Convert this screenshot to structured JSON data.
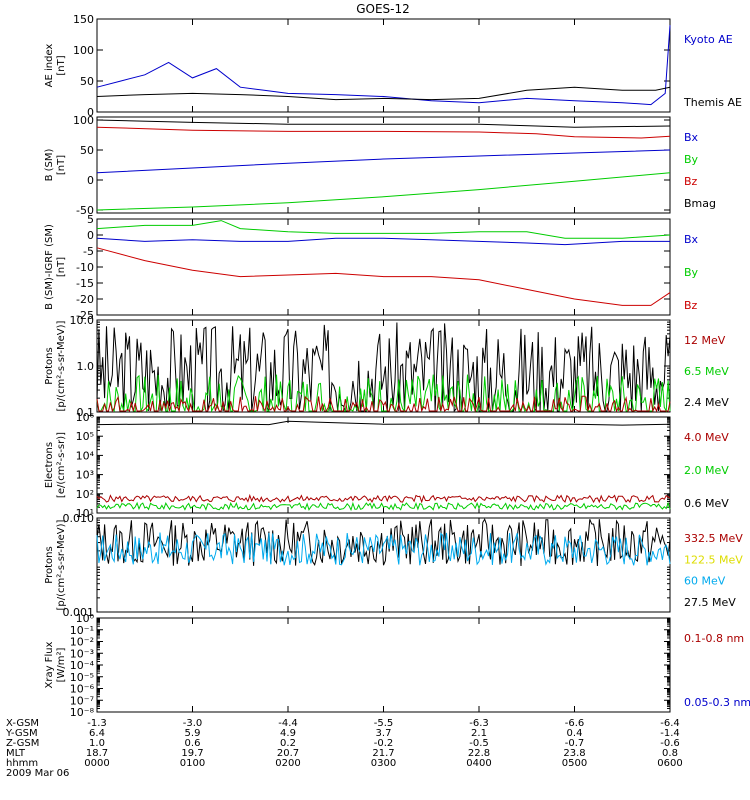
{
  "title": "GOES-12",
  "colors": {
    "black": "#000000",
    "blue": "#0000cc",
    "red": "#cc0000",
    "green": "#00cc00",
    "darkred": "#aa0000",
    "cyan": "#00aaee",
    "yellow": "#dddd00"
  },
  "x_axis": {
    "ticks": [
      "0000",
      "0100",
      "0200",
      "0300",
      "0400",
      "0500",
      "0600"
    ],
    "rows": [
      {
        "label": "X-GSM",
        "values": [
          "-1.3",
          "-3.0",
          "-4.4",
          "-5.5",
          "-6.3",
          "-6.6",
          "-6.4"
        ]
      },
      {
        "label": "Y-GSM",
        "values": [
          "6.4",
          "5.9",
          "4.9",
          "3.7",
          "2.1",
          "0.4",
          "-1.4"
        ]
      },
      {
        "label": "Z-GSM",
        "values": [
          "1.0",
          "0.6",
          "0.2",
          "-0.2",
          "-0.5",
          "-0.7",
          "-0.6"
        ]
      },
      {
        "label": "MLT",
        "values": [
          "18.7",
          "19.7",
          "20.7",
          "21.7",
          "22.8",
          "23.8",
          "0.8"
        ]
      },
      {
        "label": "hhmm",
        "values": [
          "0000",
          "0100",
          "0200",
          "0300",
          "0400",
          "0500",
          "0600"
        ]
      }
    ],
    "date": "2009 Mar 06"
  },
  "chart_data": [
    {
      "type": "line",
      "ylabel": [
        "AE index",
        "[nT]"
      ],
      "ylim": [
        0,
        150
      ],
      "yscale": "linear",
      "ticks": [
        "0",
        "50",
        "100",
        "150"
      ],
      "legend": [
        {
          "name": "Kyoto AE",
          "color": "blue"
        },
        {
          "name": "Themis AE",
          "color": "black"
        }
      ],
      "series": [
        {
          "name": "Kyoto AE",
          "color": "blue",
          "points": [
            [
              0,
              40
            ],
            [
              0.25,
              50
            ],
            [
              0.5,
              60
            ],
            [
              0.75,
              80
            ],
            [
              1,
              55
            ],
            [
              1.25,
              70
            ],
            [
              1.5,
              40
            ],
            [
              1.75,
              35
            ],
            [
              2,
              30
            ],
            [
              2.5,
              28
            ],
            [
              3,
              25
            ],
            [
              3.5,
              18
            ],
            [
              4,
              15
            ],
            [
              4.5,
              22
            ],
            [
              5,
              18
            ],
            [
              5.5,
              15
            ],
            [
              5.8,
              12
            ],
            [
              5.95,
              30
            ],
            [
              6,
              140
            ]
          ]
        },
        {
          "name": "Themis AE",
          "color": "black",
          "points": [
            [
              0,
              25
            ],
            [
              0.5,
              28
            ],
            [
              1,
              30
            ],
            [
              1.5,
              28
            ],
            [
              2,
              25
            ],
            [
              2.5,
              20
            ],
            [
              3,
              22
            ],
            [
              3.5,
              20
            ],
            [
              4,
              22
            ],
            [
              4.5,
              35
            ],
            [
              5,
              40
            ],
            [
              5.5,
              35
            ],
            [
              5.85,
              35
            ],
            [
              6,
              40
            ]
          ]
        }
      ]
    },
    {
      "type": "line",
      "ylabel": [
        "B (SM)",
        "[nT]"
      ],
      "ylim": [
        -55,
        105
      ],
      "yscale": "linear",
      "ticks": [
        "-50",
        "0",
        "50",
        "100"
      ],
      "legend": [
        {
          "name": "Bx",
          "color": "blue"
        },
        {
          "name": "By",
          "color": "green"
        },
        {
          "name": "Bz",
          "color": "red"
        },
        {
          "name": "Bmag",
          "color": "black"
        }
      ],
      "series": [
        {
          "name": "Bmag",
          "color": "black",
          "points": [
            [
              0,
              100
            ],
            [
              1,
              96
            ],
            [
              2,
              93
            ],
            [
              3,
              93
            ],
            [
              4,
              93
            ],
            [
              4.6,
              90
            ],
            [
              5,
              88
            ],
            [
              6,
              90
            ]
          ]
        },
        {
          "name": "Bz",
          "color": "red",
          "points": [
            [
              0,
              88
            ],
            [
              1,
              83
            ],
            [
              2,
              81
            ],
            [
              3,
              81
            ],
            [
              4,
              80
            ],
            [
              4.6,
              77
            ],
            [
              5,
              72
            ],
            [
              5.7,
              70
            ],
            [
              6,
              73
            ]
          ]
        },
        {
          "name": "Bx",
          "color": "blue",
          "points": [
            [
              0,
              12
            ],
            [
              1,
              20
            ],
            [
              2,
              28
            ],
            [
              3,
              35
            ],
            [
              4,
              40
            ],
            [
              5,
              45
            ],
            [
              6,
              50
            ]
          ]
        },
        {
          "name": "By",
          "color": "green",
          "points": [
            [
              0,
              -50
            ],
            [
              1,
              -45
            ],
            [
              2,
              -38
            ],
            [
              3,
              -28
            ],
            [
              4,
              -16
            ],
            [
              5,
              -2
            ],
            [
              6,
              12
            ]
          ]
        }
      ]
    },
    {
      "type": "line",
      "ylabel": [
        "B (SM)-IGRF (SM)",
        "[nT]"
      ],
      "ylim": [
        -25,
        5
      ],
      "yscale": "linear",
      "ticks": [
        "5",
        "0",
        "-5",
        "-10",
        "-15",
        "-20",
        "-25"
      ],
      "legend": [
        {
          "name": "Bx",
          "color": "blue"
        },
        {
          "name": "By",
          "color": "green"
        },
        {
          "name": "Bz",
          "color": "red"
        }
      ],
      "series": [
        {
          "name": "By",
          "color": "green",
          "points": [
            [
              0,
              2
            ],
            [
              0.5,
              3
            ],
            [
              1,
              3
            ],
            [
              1.3,
              4.5
            ],
            [
              1.5,
              2
            ],
            [
              2,
              1
            ],
            [
              2.5,
              0.5
            ],
            [
              3,
              0.5
            ],
            [
              3.5,
              0.5
            ],
            [
              4,
              1
            ],
            [
              4.5,
              1
            ],
            [
              4.9,
              -1
            ],
            [
              5.5,
              -1
            ],
            [
              6,
              0
            ]
          ]
        },
        {
          "name": "Bx",
          "color": "blue",
          "points": [
            [
              0,
              -1
            ],
            [
              0.5,
              -2
            ],
            [
              1,
              -1.5
            ],
            [
              1.5,
              -2
            ],
            [
              2,
              -2
            ],
            [
              2.5,
              -1
            ],
            [
              3,
              -1
            ],
            [
              3.5,
              -1.5
            ],
            [
              4,
              -2
            ],
            [
              4.5,
              -2.5
            ],
            [
              4.9,
              -3
            ],
            [
              5.5,
              -2
            ],
            [
              6,
              -2
            ]
          ]
        },
        {
          "name": "Bz",
          "color": "red",
          "points": [
            [
              0,
              -4
            ],
            [
              0.5,
              -8
            ],
            [
              1,
              -11
            ],
            [
              1.5,
              -13
            ],
            [
              2,
              -12.5
            ],
            [
              2.5,
              -12
            ],
            [
              3,
              -13
            ],
            [
              3.5,
              -13
            ],
            [
              4,
              -14
            ],
            [
              4.5,
              -17
            ],
            [
              5,
              -20
            ],
            [
              5.5,
              -22
            ],
            [
              5.8,
              -22
            ],
            [
              6,
              -18
            ]
          ]
        }
      ]
    },
    {
      "type": "line",
      "ylabel": [
        "Protons",
        "[p/(cm²-s-sr-MeV)]"
      ],
      "ylim": [
        0.1,
        10
      ],
      "yscale": "log",
      "ticks": [
        "10.0",
        "1.0",
        "0.1"
      ],
      "legend": [
        {
          "name": "12 MeV",
          "color": "darkred"
        },
        {
          "name": "6.5 MeV",
          "color": "green"
        },
        {
          "name": "2.4 MeV",
          "color": "black"
        }
      ],
      "series": [
        {
          "name": "2.4 MeV",
          "color": "black",
          "noisy": true,
          "base": 0.7,
          "spread": 2.2,
          "seed": 3
        },
        {
          "name": "6.5 MeV",
          "color": "green",
          "noisy": true,
          "base": 0.15,
          "spread": 1.3,
          "seed": 7
        },
        {
          "name": "12 MeV",
          "color": "darkred",
          "noisy": true,
          "base": 0.1,
          "spread": 0.7,
          "seed": 11
        }
      ]
    },
    {
      "type": "line",
      "ylabel": [
        "Electrons",
        "[e/(cm²-s-sr)]"
      ],
      "ylim": [
        10,
        1000000
      ],
      "yscale": "log",
      "ticks": [
        "10⁶",
        "10⁵",
        "10⁴",
        "10³",
        "10²",
        "10¹"
      ],
      "legend": [
        {
          "name": "4.0 MeV",
          "color": "darkred"
        },
        {
          "name": "2.0 MeV",
          "color": "green"
        },
        {
          "name": "0.6 MeV",
          "color": "black"
        }
      ],
      "series": [
        {
          "name": "0.6 MeV",
          "color": "black",
          "points": [
            [
              0,
              400000
            ],
            [
              1,
              450000
            ],
            [
              1.8,
              400000
            ],
            [
              2,
              600000
            ],
            [
              2.5,
              500000
            ],
            [
              3,
              420000
            ],
            [
              4,
              450000
            ],
            [
              5,
              420000
            ],
            [
              5.5,
              380000
            ],
            [
              6,
              420000
            ]
          ]
        },
        {
          "name": "4.0 MeV",
          "color": "darkred",
          "noisy": true,
          "base": 55,
          "spread": 0.35,
          "seed": 5
        },
        {
          "name": "2.0 MeV",
          "color": "green",
          "noisy": true,
          "base": 22,
          "spread": 0.35,
          "seed": 9
        }
      ]
    },
    {
      "type": "line",
      "ylabel": [
        "Protons",
        "[p/(cm²-s-sr-MeV)]"
      ],
      "ylim": [
        0.001,
        0.1
      ],
      "yscale": "log",
      "ticks": [
        "0.010",
        "0.001"
      ],
      "legend": [
        {
          "name": "332.5 MeV",
          "color": "darkred"
        },
        {
          "name": "122.5 MeV",
          "color": "yellow"
        },
        {
          "name": "60 MeV",
          "color": "cyan"
        },
        {
          "name": "27.5 MeV",
          "color": "black"
        }
      ],
      "series": [
        {
          "name": "27.5 MeV",
          "color": "black",
          "noisy": true,
          "base": 0.03,
          "spread": 1.0,
          "seed": 13
        },
        {
          "name": "60 MeV",
          "color": "cyan",
          "noisy": true,
          "base": 0.022,
          "spread": 0.7,
          "seed": 17
        }
      ]
    },
    {
      "type": "line",
      "ylabel": [
        "Xray Flux",
        "[W/m²]"
      ],
      "ylim": [
        1e-08,
        1
      ],
      "yscale": "log",
      "ticks": [
        "10⁰",
        "10⁻¹",
        "10⁻²",
        "10⁻³",
        "10⁻⁴",
        "10⁻⁵",
        "10⁻⁶",
        "10⁻⁷",
        "10⁻⁸"
      ],
      "legend": [
        {
          "name": "0.1-0.8 nm",
          "color": "darkred"
        },
        {
          "name": "0.05-0.3 nm",
          "color": "blue"
        }
      ],
      "series": []
    }
  ]
}
